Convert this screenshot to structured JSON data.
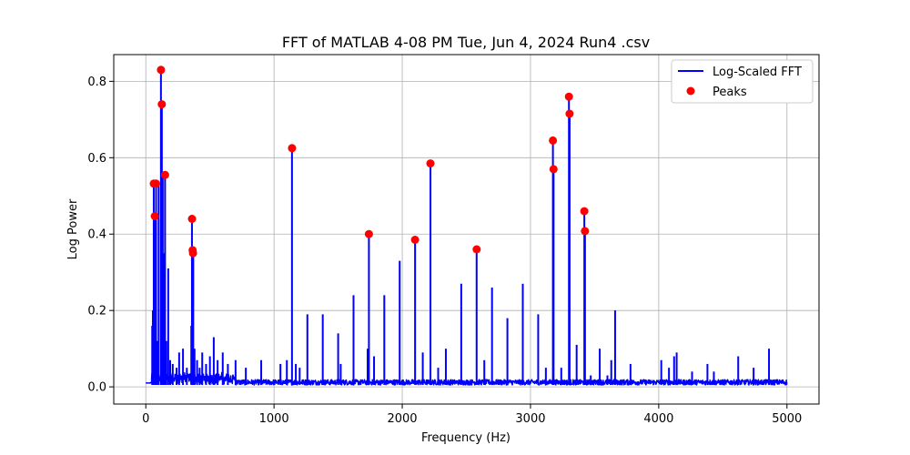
{
  "chart_data": {
    "type": "line",
    "title": "FFT of MATLAB 4-08 PM Tue, Jun 4, 2024 Run4 .csv",
    "xlabel": "Frequency (Hz)",
    "ylabel": "Log Power",
    "xlim": [
      -250,
      5250
    ],
    "ylim": [
      -0.045,
      0.87
    ],
    "x_ticks": [
      0,
      1000,
      2000,
      3000,
      4000,
      5000
    ],
    "y_ticks": [
      0.0,
      0.2,
      0.4,
      0.6,
      0.8
    ],
    "x_tick_labels": [
      "0",
      "1000",
      "2000",
      "3000",
      "4000",
      "5000"
    ],
    "y_tick_labels": [
      "0.0",
      "0.2",
      "0.4",
      "0.6",
      "0.8"
    ],
    "grid": true,
    "legend_position": "top-right",
    "colors": {
      "fft": "#0000ff",
      "peaks": "#ff0000"
    },
    "series": [
      {
        "name": "Log-Scaled FFT",
        "kind": "line",
        "spikes": [
          [
            50,
            0.16
          ],
          [
            55,
            0.2
          ],
          [
            62,
            0.53
          ],
          [
            70,
            0.45
          ],
          [
            80,
            0.53
          ],
          [
            90,
            0.12
          ],
          [
            100,
            0.53
          ],
          [
            118,
            0.83
          ],
          [
            125,
            0.74
          ],
          [
            132,
            0.55
          ],
          [
            140,
            0.35
          ],
          [
            150,
            0.56
          ],
          [
            160,
            0.12
          ],
          [
            175,
            0.31
          ],
          [
            190,
            0.07
          ],
          [
            210,
            0.06
          ],
          [
            240,
            0.05
          ],
          [
            260,
            0.09
          ],
          [
            290,
            0.1
          ],
          [
            320,
            0.05
          ],
          [
            355,
            0.16
          ],
          [
            360,
            0.44
          ],
          [
            365,
            0.36
          ],
          [
            370,
            0.35
          ],
          [
            380,
            0.1
          ],
          [
            400,
            0.07
          ],
          [
            420,
            0.05
          ],
          [
            440,
            0.09
          ],
          [
            470,
            0.06
          ],
          [
            500,
            0.08
          ],
          [
            530,
            0.13
          ],
          [
            560,
            0.07
          ],
          [
            600,
            0.09
          ],
          [
            640,
            0.06
          ],
          [
            700,
            0.07
          ],
          [
            780,
            0.05
          ],
          [
            900,
            0.07
          ],
          [
            1050,
            0.06
          ],
          [
            1100,
            0.07
          ],
          [
            1140,
            0.625
          ],
          [
            1170,
            0.06
          ],
          [
            1200,
            0.05
          ],
          [
            1260,
            0.19
          ],
          [
            1380,
            0.19
          ],
          [
            1500,
            0.14
          ],
          [
            1520,
            0.06
          ],
          [
            1620,
            0.24
          ],
          [
            1730,
            0.1
          ],
          [
            1740,
            0.4
          ],
          [
            1780,
            0.08
          ],
          [
            1860,
            0.24
          ],
          [
            1980,
            0.33
          ],
          [
            2100,
            0.385
          ],
          [
            2160,
            0.09
          ],
          [
            2220,
            0.585
          ],
          [
            2280,
            0.05
          ],
          [
            2340,
            0.1
          ],
          [
            2460,
            0.27
          ],
          [
            2580,
            0.36
          ],
          [
            2640,
            0.07
          ],
          [
            2700,
            0.26
          ],
          [
            2820,
            0.18
          ],
          [
            2940,
            0.27
          ],
          [
            3060,
            0.19
          ],
          [
            3120,
            0.05
          ],
          [
            3175,
            0.645
          ],
          [
            3180,
            0.57
          ],
          [
            3240,
            0.05
          ],
          [
            3300,
            0.76
          ],
          [
            3305,
            0.715
          ],
          [
            3360,
            0.11
          ],
          [
            3420,
            0.46
          ],
          [
            3425,
            0.41
          ],
          [
            3470,
            0.03
          ],
          [
            3540,
            0.1
          ],
          [
            3600,
            0.03
          ],
          [
            3630,
            0.07
          ],
          [
            3660,
            0.2
          ],
          [
            3780,
            0.06
          ],
          [
            4020,
            0.07
          ],
          [
            4080,
            0.05
          ],
          [
            4120,
            0.08
          ],
          [
            4140,
            0.09
          ],
          [
            4260,
            0.04
          ],
          [
            4380,
            0.06
          ],
          [
            4430,
            0.04
          ],
          [
            4620,
            0.08
          ],
          [
            4740,
            0.05
          ],
          [
            4860,
            0.1
          ]
        ]
      },
      {
        "name": "Peaks",
        "kind": "scatter",
        "points": [
          [
            62,
            0.532
          ],
          [
            70,
            0.447
          ],
          [
            80,
            0.532
          ],
          [
            118,
            0.83
          ],
          [
            125,
            0.74
          ],
          [
            150,
            0.555
          ],
          [
            360,
            0.44
          ],
          [
            365,
            0.358
          ],
          [
            368,
            0.35
          ],
          [
            1140,
            0.625
          ],
          [
            1740,
            0.4
          ],
          [
            2100,
            0.385
          ],
          [
            2220,
            0.585
          ],
          [
            2580,
            0.36
          ],
          [
            3175,
            0.645
          ],
          [
            3180,
            0.57
          ],
          [
            3300,
            0.76
          ],
          [
            3305,
            0.715
          ],
          [
            3420,
            0.46
          ],
          [
            3425,
            0.408
          ]
        ]
      }
    ]
  }
}
